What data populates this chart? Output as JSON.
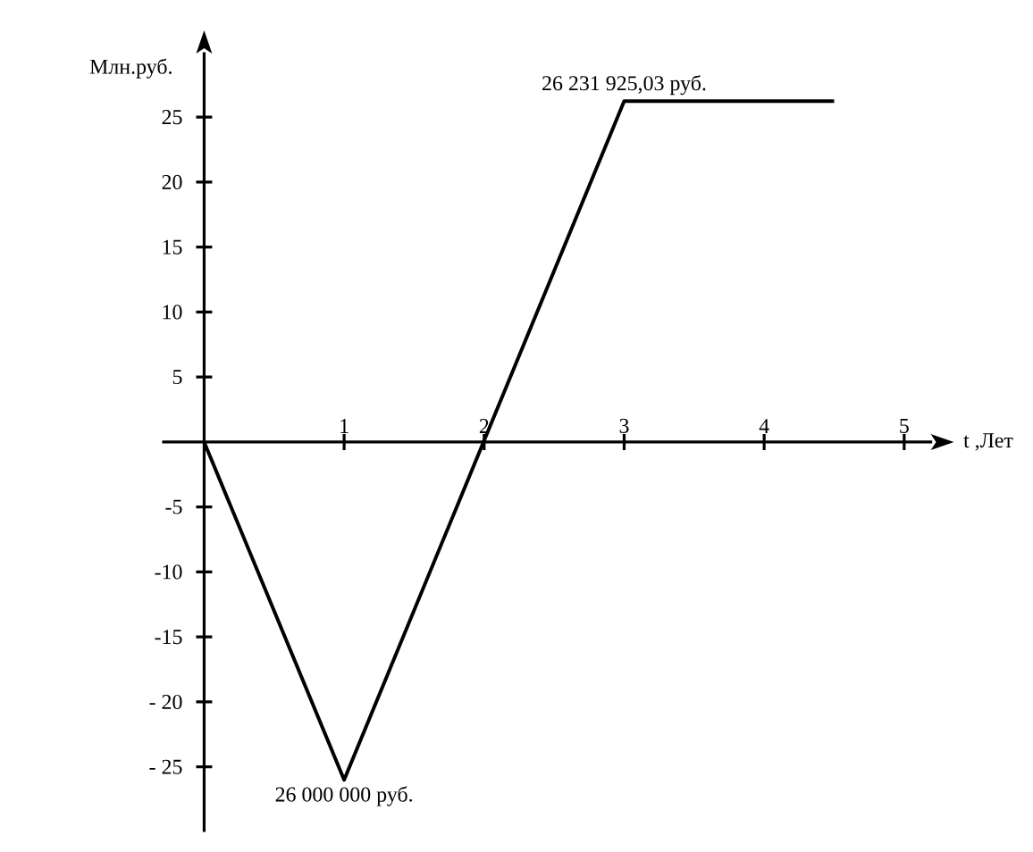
{
  "chart_data": {
    "type": "line",
    "xlabel": "t ,Лет",
    "ylabel": "Млн.руб.",
    "x": [
      0,
      1,
      3,
      4.5
    ],
    "values": [
      0,
      -26,
      26.23,
      26.23
    ],
    "color": "#000000",
    "xlim": [
      -0.3,
      5.2
    ],
    "ylim": [
      -30,
      30
    ],
    "xticks": [
      1,
      2,
      3,
      4,
      5
    ],
    "yticks": [
      {
        "value": -25,
        "label": "- 25"
      },
      {
        "value": -20,
        "label": "- 20"
      },
      -15,
      -10,
      -5,
      5,
      10,
      15,
      20,
      25
    ],
    "annotations": [
      {
        "text": "26 231 925,03 руб.",
        "x": 3,
        "y": 26.23
      },
      {
        "text": "26 000 000 руб.",
        "x": 1,
        "y": -26
      }
    ]
  }
}
